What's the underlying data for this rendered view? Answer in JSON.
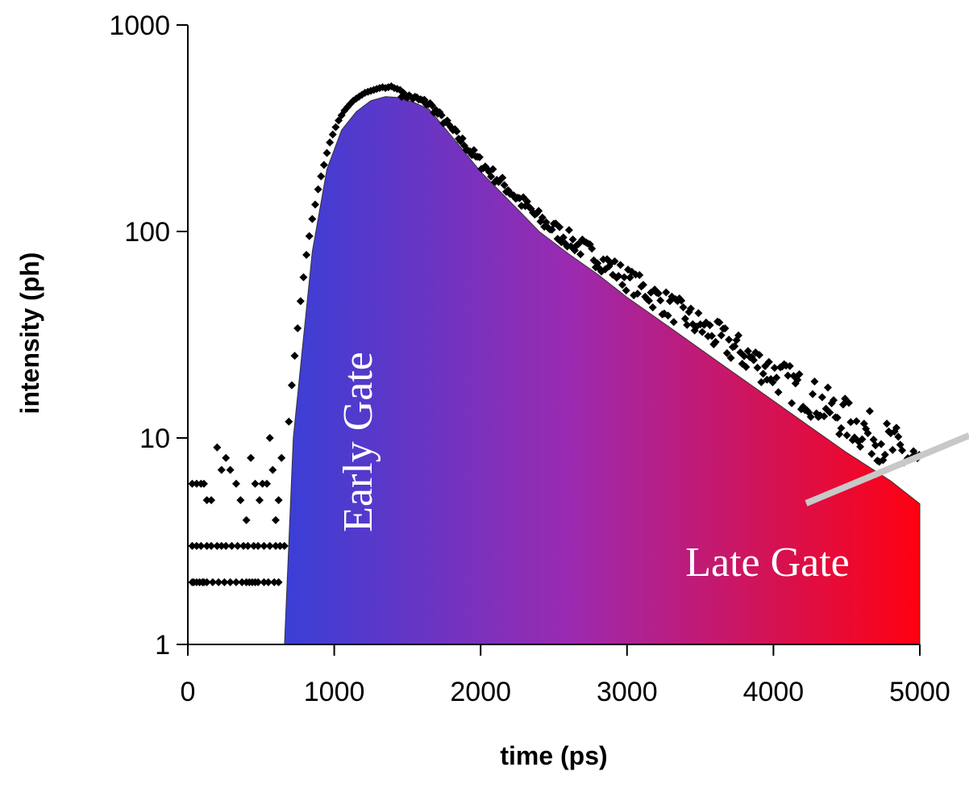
{
  "chart_data": {
    "type": "scatter",
    "xlabel": "time (ps)",
    "ylabel": "intensity (ph)",
    "y_scale": "log",
    "xlim": [
      0,
      5000
    ],
    "ylim": [
      1,
      1000
    ],
    "x_ticks": [
      "0",
      "1000",
      "2000",
      "3000",
      "4000",
      "5000"
    ],
    "y_ticks": [
      "1",
      "10",
      "100",
      "1000"
    ],
    "grid": false,
    "legend": "none",
    "annotations": [
      "Early Gate",
      "Late Gate"
    ],
    "fill_gradient": [
      "#3a3fd6",
      "#9b2ab0",
      "#ff0010"
    ],
    "marker_color": "#000000",
    "fill_curve": {
      "x": [
        660,
        720,
        780,
        850,
        950,
        1050,
        1150,
        1250,
        1350,
        1450,
        1550,
        1650,
        1800,
        2000,
        2200,
        2400,
        2600,
        2800,
        3000,
        3300,
        3600,
        3900,
        4200,
        4500,
        4800,
        5000
      ],
      "y": [
        1,
        10,
        26,
        80,
        200,
        310,
        380,
        430,
        450,
        445,
        420,
        390,
        290,
        195,
        140,
        100,
        78,
        62,
        48,
        34,
        24,
        17,
        12,
        8.5,
        6.2,
        4.8
      ]
    },
    "series": [
      {
        "x": [
          30,
          60,
          90,
          110,
          130,
          160,
          200,
          230,
          260,
          290,
          330,
          360,
          400,
          430,
          460,
          490,
          510,
          540,
          560,
          580,
          600,
          620,
          640,
          660,
          30,
          60,
          90,
          130,
          160,
          200,
          230,
          260,
          300,
          340,
          380,
          410,
          450,
          480,
          520,
          560,
          600,
          630,
          30,
          60,
          100,
          130,
          170,
          210,
          250,
          290,
          330,
          370,
          400,
          440,
          480,
          520,
          550,
          590,
          620,
          40,
          80,
          110,
          420,
          460
        ],
        "y": [
          6,
          6,
          6,
          6,
          5,
          5,
          9,
          7,
          8,
          7,
          6,
          5,
          4,
          8,
          6,
          5,
          6,
          6,
          10,
          7,
          4,
          5,
          8,
          3,
          3,
          3,
          3,
          3,
          3,
          3,
          3,
          3,
          3,
          3,
          3,
          3,
          3,
          3,
          3,
          3,
          3,
          3,
          2,
          2,
          2,
          2,
          2,
          2,
          2,
          2,
          2,
          2,
          2,
          2,
          2,
          2,
          2,
          2,
          2,
          2,
          2,
          2,
          2,
          2
        ]
      },
      {
        "x": [
          690,
          710,
          730,
          750,
          770,
          790,
          810,
          830,
          850,
          870,
          890,
          910,
          930,
          950,
          970,
          990,
          1010,
          1030,
          1050,
          1070,
          1090,
          1110,
          1130,
          1150,
          1170,
          1190,
          1210,
          1230,
          1250,
          1270,
          1290,
          1310,
          1330,
          1350,
          1370,
          1390,
          1410,
          1430,
          1450
        ],
        "y": [
          12,
          18,
          25,
          34,
          46,
          60,
          77,
          95,
          115,
          135,
          160,
          185,
          210,
          240,
          270,
          295,
          320,
          345,
          365,
          385,
          400,
          415,
          430,
          440,
          450,
          460,
          470,
          475,
          480,
          485,
          490,
          495,
          500,
          495,
          500,
          505,
          495,
          490,
          485
        ]
      }
    ]
  }
}
